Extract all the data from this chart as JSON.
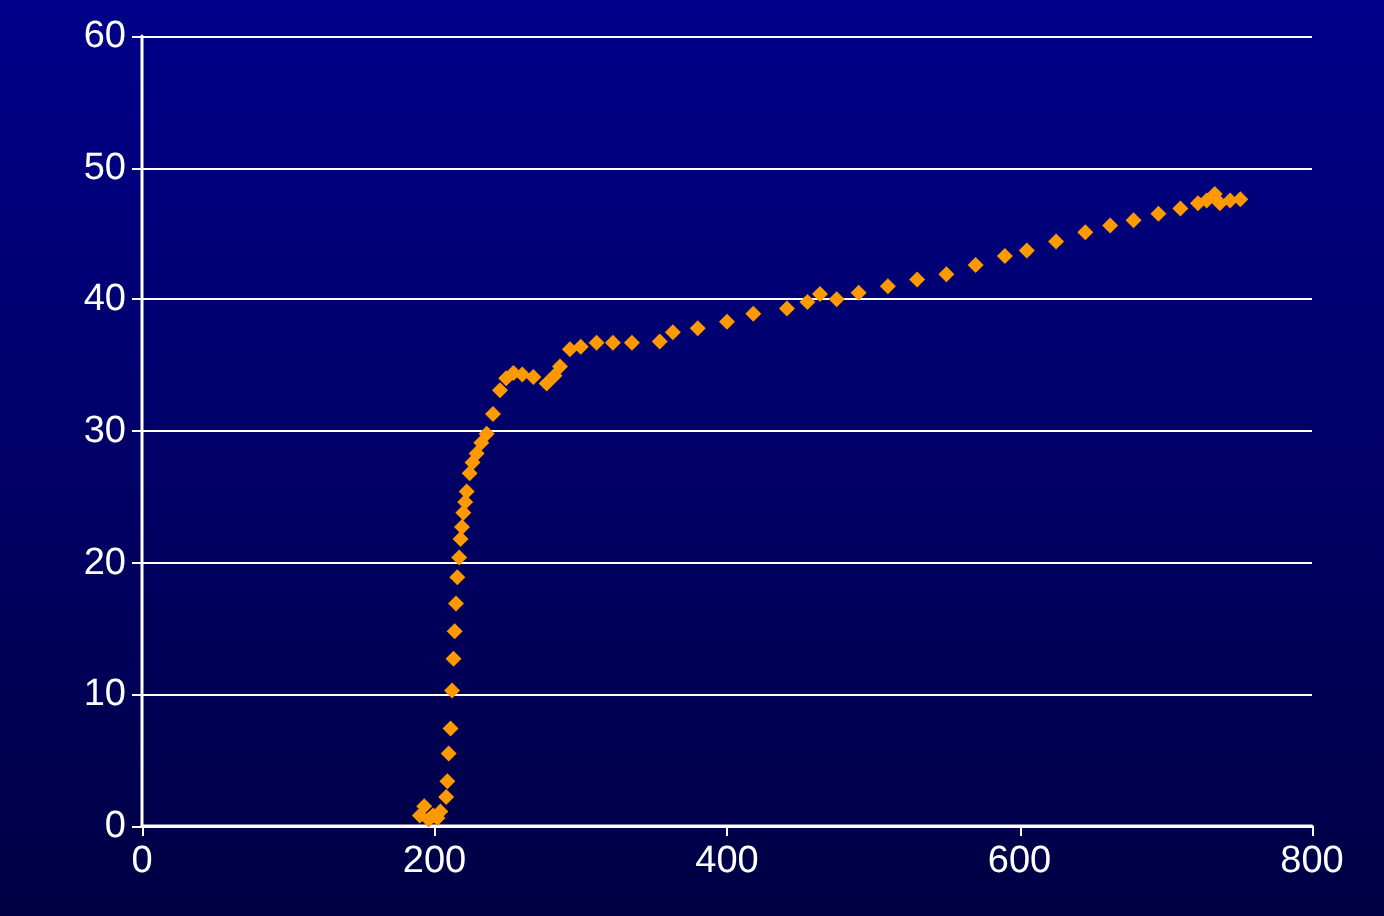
{
  "chart_data": {
    "type": "scatter",
    "marker": "diamond",
    "grid": "y",
    "x": [
      190,
      193,
      196,
      199,
      202,
      204,
      208,
      208.8,
      209.7,
      211,
      212,
      213,
      213.8,
      214.7,
      215.6,
      216.9,
      217.8,
      218.8,
      219.7,
      221,
      222,
      224,
      226,
      228.8,
      232,
      235.7,
      240,
      244.8,
      249,
      254,
      260,
      267.6,
      276.7,
      282,
      285.8,
      292.6,
      300,
      310.8,
      322,
      335,
      354,
      363,
      380,
      400,
      418,
      441,
      455,
      463.6,
      475,
      490,
      510,
      530,
      550,
      570,
      590,
      605,
      625,
      645,
      662,
      678,
      695,
      710,
      722,
      728,
      733.5,
      737,
      744,
      751
    ],
    "values": [
      0.8,
      1.5,
      0.5,
      0.8,
      0.6,
      1.1,
      2.2,
      3.4,
      5.5,
      7.4,
      10.3,
      12.7,
      14.8,
      16.9,
      18.9,
      20.4,
      21.8,
      22.7,
      23.8,
      24.6,
      25.4,
      26.8,
      27.6,
      28.3,
      29.1,
      29.8,
      31.3,
      33.1,
      34.0,
      34.4,
      34.3,
      34.1,
      33.6,
      34.2,
      34.9,
      36.2,
      36.4,
      36.7,
      36.7,
      36.7,
      36.8,
      37.5,
      37.8,
      38.3,
      38.9,
      39.3,
      39.8,
      40.4,
      40.0,
      40.5,
      41.0,
      41.5,
      41.9,
      42.6,
      43.3,
      43.7,
      44.4,
      45.1,
      45.6,
      46.0,
      46.5,
      46.9,
      47.3,
      47.5,
      48.0,
      47.3,
      47.5,
      47.6
    ],
    "color": "#ff9900",
    "xlim": [
      0,
      800
    ],
    "xticks": [
      0,
      200,
      400,
      600,
      800
    ],
    "ylim": [
      0,
      60
    ],
    "yticks": [
      0,
      10,
      20,
      30,
      40,
      50,
      60
    ]
  }
}
